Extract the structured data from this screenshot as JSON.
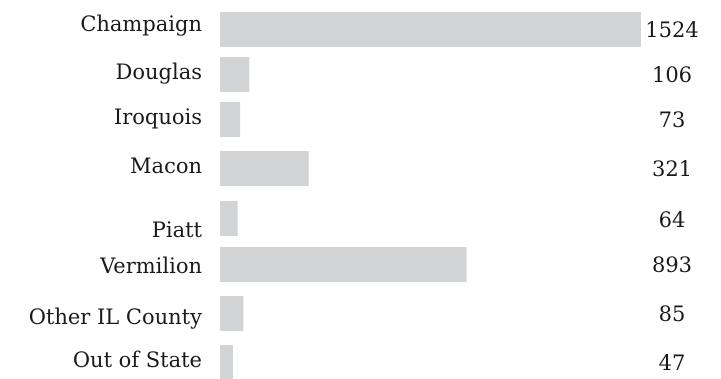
{
  "chart_data": {
    "type": "bar",
    "orientation": "horizontal",
    "title": "",
    "xlabel": "",
    "ylabel": "",
    "categories": [
      "Champaign",
      "Douglas",
      "Iroquois",
      "Macon",
      "Piatt",
      "Vermilion",
      "Other IL County",
      "Out of State"
    ],
    "values": [
      1524,
      106,
      73,
      321,
      64,
      893,
      85,
      47
    ],
    "value_labels": [
      "1524",
      "106",
      "73",
      "321",
      "64",
      "893",
      "85",
      "47"
    ],
    "xlim": [
      0,
      1524
    ],
    "grid": false,
    "legend": "none",
    "bar_color": "#d3d4d6"
  }
}
